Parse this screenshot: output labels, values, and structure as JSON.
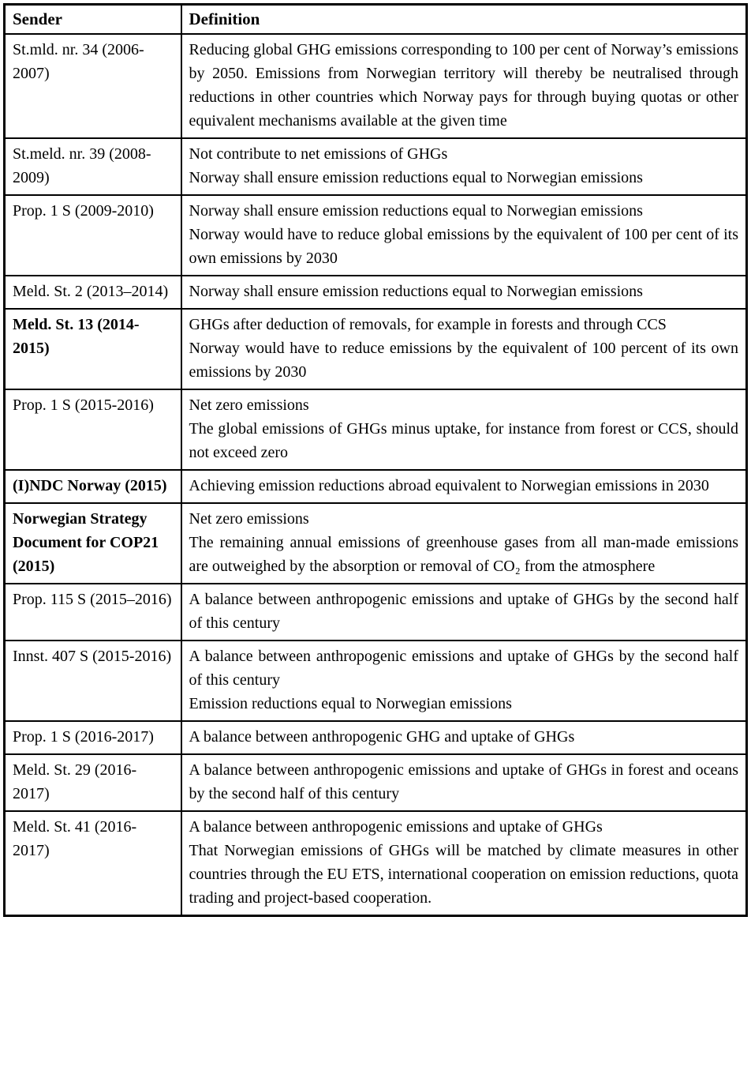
{
  "table": {
    "headers": [
      "Sender",
      "Definition"
    ],
    "rows": [
      {
        "sender": "St.mld. nr. 34 (2006-2007)",
        "definitions": [
          "Reducing global GHG emissions corresponding to 100 per cent of Norway’s emissions by 2050. Emissions from Norwegian territory will thereby be neutralised through reductions in other countries which Norway pays for through buying quotas or other equivalent mechanisms available at the given time"
        ]
      },
      {
        "sender": "St.meld. nr. 39 (2008-2009)",
        "definitions": [
          "Not contribute to net emissions of GHGs",
          "Norway shall ensure emission reductions equal to Norwegian emissions"
        ]
      },
      {
        "sender": "Prop. 1 S (2009-2010)",
        "definitions": [
          "Norway shall ensure emission reductions equal to Norwegian emissions",
          "Norway would have to reduce global emissions by the equivalent of 100 per cent of its own emissions by 2030"
        ]
      },
      {
        "sender": "Meld. St. 2 (2013–2014)",
        "definitions": [
          "Norway shall ensure emission reductions equal to Norwegian emissions"
        ]
      },
      {
        "sender": "Meld. St. 13 (2014-2015)",
        "definitions": [
          "GHGs after deduction of removals, for example in forests and through CCS",
          "Norway would have to reduce emissions by the equivalent of 100 percent of its own emissions by 2030"
        ]
      },
      {
        "sender": "Prop. 1 S (2015-2016)",
        "definitions": [
          "Net zero emissions",
          "The global emissions of GHGs minus uptake, for instance from forest or CCS, should not exceed zero"
        ]
      },
      {
        "sender": "(I)NDC Norway (2015)",
        "definitions": [
          "Achieving emission reductions abroad equivalent to Norwegian emissions in 2030"
        ]
      },
      {
        "sender": "Norwegian Strategy Document for COP21 (2015)",
        "definitions": [
          "Net zero emissions",
          "The remaining annual emissions of greenhouse gases from all man-made emissions are outweighed by the absorption or removal of CO₂ from the atmosphere"
        ]
      },
      {
        "sender": "Prop. 115 S (2015–2016)",
        "definitions": [
          "A balance between anthropogenic emissions and uptake of GHGs by the second half of this century"
        ]
      },
      {
        "sender": "Innst. 407 S (2015-2016)",
        "definitions": [
          "A balance between anthropogenic emissions and uptake of GHGs by the second half of this century",
          "Emission reductions equal to Norwegian emissions"
        ]
      },
      {
        "sender": "Prop. 1 S (2016-2017)",
        "definitions": [
          "A balance between anthropogenic GHG and uptake of GHGs"
        ]
      },
      {
        "sender": "Meld. St. 29 (2016-2017)",
        "definitions": [
          "A balance between anthropogenic emissions and uptake of GHGs in forest and oceans by the second half of this century"
        ]
      },
      {
        "sender": "Meld. St. 41 (2016-2017)",
        "definitions": [
          "A balance between anthropogenic emissions and uptake of GHGs",
          "That Norwegian emissions of GHGs will be matched by climate measures in other countries through the EU ETS, international cooperation on emission reductions, quota trading and project-based cooperation."
        ]
      }
    ]
  }
}
